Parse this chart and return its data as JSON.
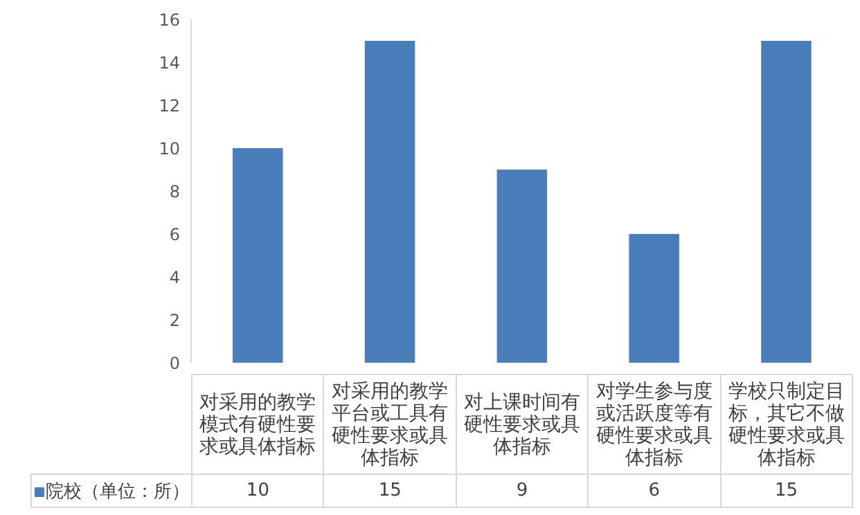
{
  "chart_data": {
    "type": "bar",
    "categories": [
      "对采用的教学模式有硬性要求或具体指标",
      "对采用的教学平台或工具有硬性要求或具体指标",
      "对上课时间有硬性要求或具体指标",
      "对学生参与度或活跃度等有硬性要求或具体指标",
      "学校只制定目标，其它不做硬性要求或具体指标"
    ],
    "series": [
      {
        "name": "院校（单位：所）",
        "color": "#4a7ebb",
        "values": [
          10,
          15,
          9,
          6,
          15
        ]
      }
    ],
    "ylim": [
      0,
      16
    ],
    "yticks": [
      0,
      2,
      4,
      6,
      8,
      10,
      12,
      14,
      16
    ],
    "grid": false,
    "legend": "bottom left",
    "data_labels": true
  }
}
